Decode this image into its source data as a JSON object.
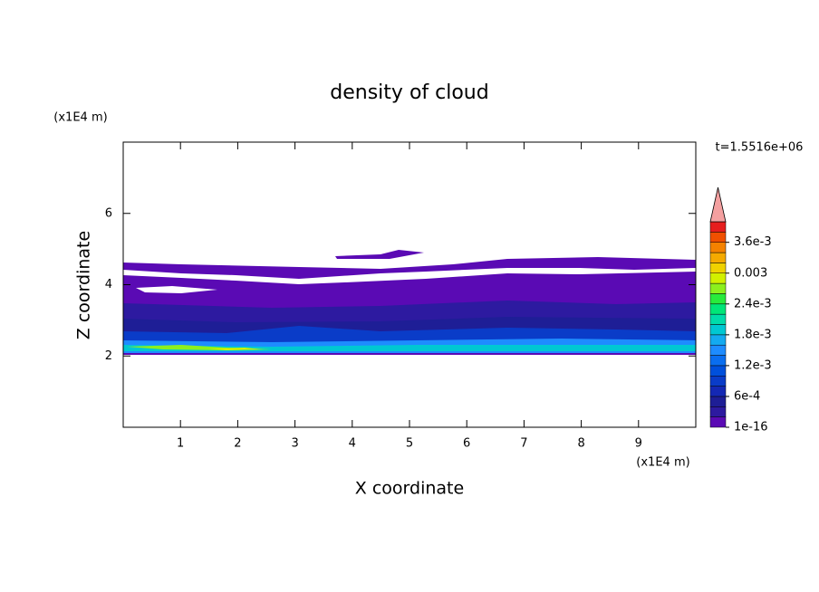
{
  "chart_data": {
    "type": "contour",
    "title": "density of cloud",
    "x_label": "X coordinate",
    "y_label": "Z coordinate",
    "x_unit": "(x1E4 m)",
    "y_unit": "(x1E4 m)",
    "time_label": "t=1.5516e+06",
    "xlim": [
      0,
      10
    ],
    "ylim": [
      0,
      8
    ],
    "xticks": [
      1,
      2,
      3,
      4,
      5,
      6,
      7,
      8,
      9
    ],
    "yticks": [
      2,
      4,
      6
    ],
    "colorbar": {
      "clim": [
        0,
        0.004
      ],
      "ticks": [
        1e-16,
        {
          "value": 0.0006,
          "label": "6e-4"
        },
        {
          "value": 0.0012,
          "label": "1.2e-3"
        },
        {
          "value": 0.0018,
          "label": "1.8e-3"
        },
        {
          "value": 0.0024,
          "label": "2.4e-3"
        },
        0.003,
        {
          "value": 0.0036,
          "label": "3.6e-3"
        }
      ],
      "colors": [
        "#5a0ab4",
        "#2d1aa0",
        "#1e1e96",
        "#1428b4",
        "#0a3cc8",
        "#0050dc",
        "#0a6ef0",
        "#1e8cff",
        "#14aaf0",
        "#00c8d2",
        "#00dcaa",
        "#00e678",
        "#28eb3c",
        "#8cf01e",
        "#d2f000",
        "#f0d200",
        "#f5aa00",
        "#f58200",
        "#f05000",
        "#e61e1e"
      ],
      "over_color": "#f4a0a0"
    }
  }
}
